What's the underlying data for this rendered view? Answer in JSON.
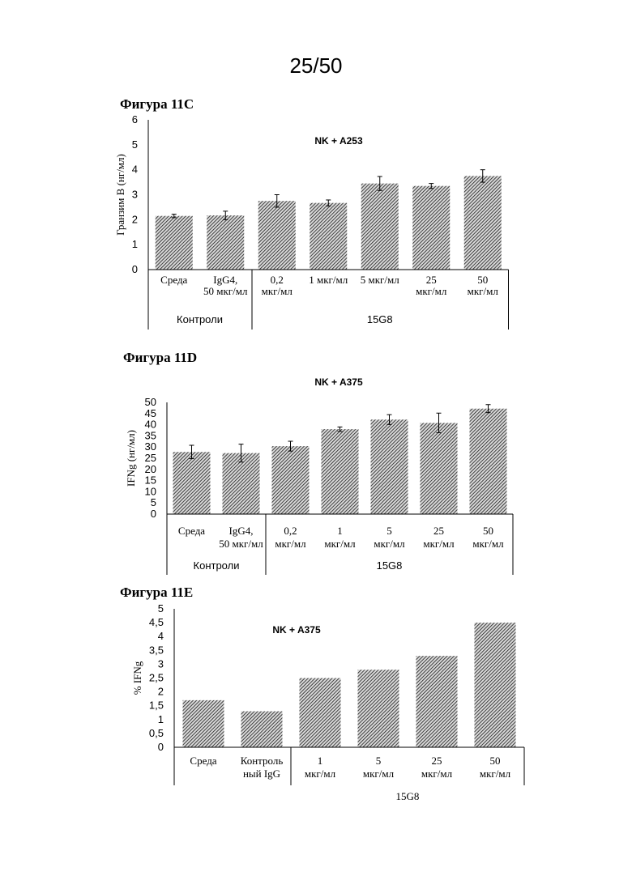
{
  "page": {
    "number": "25/50"
  },
  "chart_data": [
    {
      "id": "fig11c",
      "figure_title": "Фигура 11C",
      "type": "bar",
      "title": "NK + A253",
      "ylabel": "Гранзим B (нг/мл)",
      "ylim": [
        0,
        6
      ],
      "yticks": [
        "0",
        "1",
        "2",
        "3",
        "4",
        "5",
        "6"
      ],
      "categories": [
        [
          "Среда"
        ],
        [
          "IgG4,",
          "50 мкг/мл"
        ],
        [
          "0,2",
          "мкг/мл"
        ],
        [
          "1 мкг/мл"
        ],
        [
          "5 мкг/мл"
        ],
        [
          "25",
          "мкг/мл"
        ],
        [
          "50",
          "мкг/мл"
        ]
      ],
      "series": [
        {
          "values": [
            2.15,
            2.17,
            2.75,
            2.67,
            3.45,
            3.35,
            3.75
          ],
          "errors": [
            0.07,
            0.17,
            0.25,
            0.12,
            0.28,
            0.1,
            0.25
          ]
        }
      ],
      "groups": [
        {
          "label": "Контроли",
          "start": 0,
          "end": 1
        },
        {
          "label": "15G8",
          "start": 2,
          "end": 6
        }
      ]
    },
    {
      "id": "fig11d",
      "figure_title": "Фигура 11D",
      "type": "bar",
      "title": "NK + A375",
      "ylabel": "IFNg (нг/мл)",
      "ylim": [
        0,
        50
      ],
      "yticks": [
        "0",
        "5",
        "10",
        "15",
        "20",
        "25",
        "30",
        "35",
        "40",
        "45",
        "50"
      ],
      "categories": [
        [
          "Среда"
        ],
        [
          "IgG4,",
          "50 мкг/мл"
        ],
        [
          "0,2",
          "мкг/мл"
        ],
        [
          "1",
          "мкг/мл"
        ],
        [
          "5",
          "мкг/мл"
        ],
        [
          "25",
          "мкг/мл"
        ],
        [
          "50",
          "мкг/мл"
        ]
      ],
      "series": [
        {
          "values": [
            27.8,
            27.3,
            30.4,
            38.0,
            42.3,
            40.8,
            47.2
          ],
          "errors": [
            3.0,
            4.0,
            2.2,
            1.0,
            2.2,
            4.4,
            1.8
          ]
        }
      ],
      "groups": [
        {
          "label": "Контроли",
          "start": 0,
          "end": 1
        },
        {
          "label": "15G8",
          "start": 2,
          "end": 6
        }
      ]
    },
    {
      "id": "fig11e",
      "figure_title": "Фигура 11E",
      "type": "bar",
      "title": "NK + A375",
      "ylabel": "% IFNg",
      "ylim": [
        0,
        5
      ],
      "yticks": [
        "0",
        "0,5",
        "1",
        "1,5",
        "2",
        "2,5",
        "3",
        "3,5",
        "4",
        "4,5",
        "5"
      ],
      "categories": [
        [
          "Среда"
        ],
        [
          "Контроль",
          "ный IgG"
        ],
        [
          "1",
          "мкг/мл"
        ],
        [
          "5",
          "мкг/мл"
        ],
        [
          "25",
          "мкг/мл"
        ],
        [
          "50",
          "мкг/мл"
        ]
      ],
      "series": [
        {
          "values": [
            1.7,
            1.3,
            2.5,
            2.8,
            3.3,
            4.5
          ]
        }
      ],
      "groups": [
        {
          "label": "15G8",
          "start": 2,
          "end": 5
        }
      ]
    }
  ]
}
